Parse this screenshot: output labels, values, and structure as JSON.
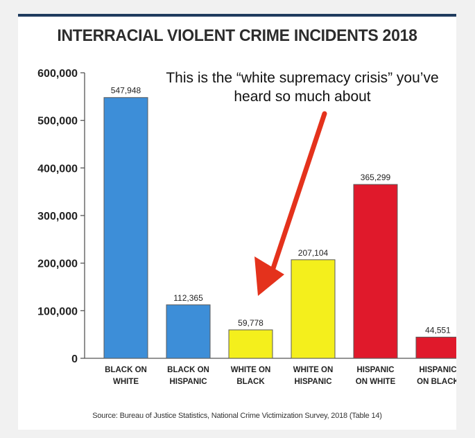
{
  "chart_data": {
    "type": "bar",
    "title": "INTERRACIAL VIOLENT CRIME INCIDENTS 2018",
    "categories": [
      [
        "BLACK ON",
        "WHITE"
      ],
      [
        "BLACK ON",
        "HISPANIC"
      ],
      [
        "WHITE ON",
        "BLACK"
      ],
      [
        "WHITE ON",
        "HISPANIC"
      ],
      [
        "HISPANIC",
        "ON WHITE"
      ],
      [
        "HISPANIC",
        "ON BLACK"
      ]
    ],
    "values": [
      547948,
      112365,
      59778,
      207104,
      365299,
      44551
    ],
    "value_labels": [
      "547,948",
      "112,365",
      "59,778",
      "207,104",
      "365,299",
      "44,551"
    ],
    "colors": [
      "#3d8ed8",
      "#3d8ed8",
      "#f4ef1c",
      "#f4ef1c",
      "#e0192b",
      "#e0192b"
    ],
    "yticks": [
      0,
      100000,
      200000,
      300000,
      400000,
      500000,
      600000
    ],
    "ytick_labels": [
      "0",
      "100,000",
      "200,000",
      "300,000",
      "400,000",
      "500,000",
      "600,000"
    ],
    "ylim": [
      0,
      600000
    ],
    "grid": false,
    "legend": "none",
    "annotation": "This is the “white supremacy crisis” you’ve heard so much about",
    "annotation_arrow_color": "#e4321c",
    "source": "Source: Bureau of Justice Statistics, National Crime Victimization Survey, 2018 (Table 14)"
  }
}
